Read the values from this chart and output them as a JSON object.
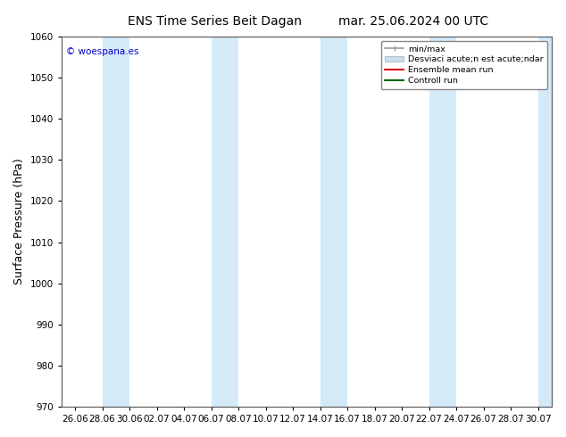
{
  "title_left": "ENS Time Series Beit Dagan",
  "title_right": "mar. 25.06.2024 00 UTC",
  "ylabel": "Surface Pressure (hPa)",
  "ylim": [
    970,
    1060
  ],
  "yticks": [
    970,
    980,
    990,
    1000,
    1010,
    1020,
    1030,
    1040,
    1050,
    1060
  ],
  "watermark": "© woespana.es",
  "watermark_color": "#0000cc",
  "background_color": "#ffffff",
  "plot_bg_color": "#ffffff",
  "band_color": "#d5eaf8",
  "xtick_labels": [
    "26.06",
    "28.06",
    "30.06",
    "02.07",
    "04.07",
    "06.07",
    "08.07",
    "10.07",
    "12.07",
    "14.07",
    "16.07",
    "18.07",
    "20.07",
    "22.07",
    "24.07",
    "26.07",
    "28.07",
    "30.07"
  ],
  "band_indices": [
    1,
    5,
    9,
    13,
    17
  ],
  "title_fontsize": 10,
  "tick_fontsize": 7.5,
  "ylabel_fontsize": 9,
  "legend_label_minmax": "min/max",
  "legend_label_std": "Desviaci acute;n est acute;ndar",
  "legend_label_ens": "Ensemble mean run",
  "legend_label_ctrl": "Controll run",
  "legend_color_minmax": "#999999",
  "legend_color_std": "#c8dff0",
  "legend_color_ens": "#dd0000",
  "legend_color_ctrl": "#006600"
}
